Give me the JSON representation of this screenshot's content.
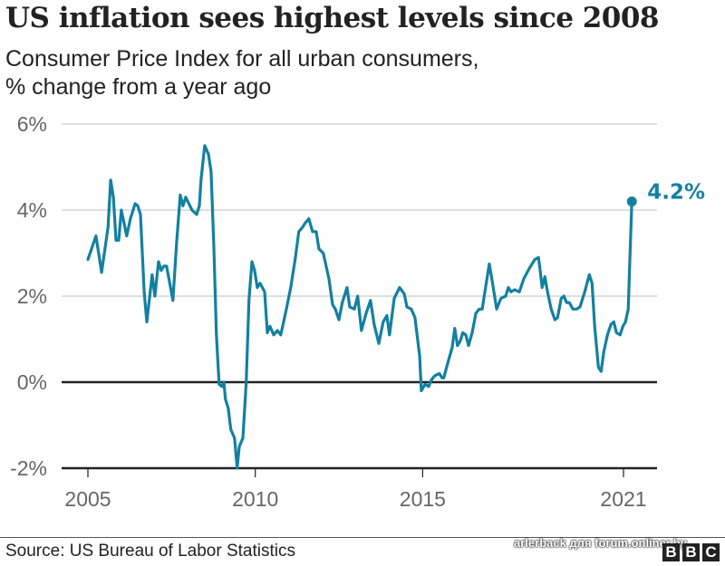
{
  "header": {
    "title": "US inflation sees highest levels since 2008",
    "subtitle_line1": "Consumer Price Index for all urban consumers,",
    "subtitle_line2": "% change from a year ago"
  },
  "footer": {
    "source": "Source: US Bureau of Labor Statistics",
    "watermark": "arlerback для forum.onliner.by",
    "logo_letters": [
      "B",
      "B",
      "C"
    ]
  },
  "colors": {
    "line": "#1380A1",
    "grid": "#cccccc",
    "axis": "#222222",
    "tick_text": "#666666"
  },
  "chart_data": {
    "type": "line",
    "title": "US inflation sees highest levels since 2008",
    "subtitle": "Consumer Price Index for all urban consumers, % change from a year ago",
    "xlabel": "",
    "ylabel": "",
    "xlim": [
      2004.2,
      2021.98
    ],
    "ylim": [
      -2,
      6
    ],
    "y_ticks": [
      {
        "value": 6,
        "label": "6%"
      },
      {
        "value": 4,
        "label": "4%"
      },
      {
        "value": 2,
        "label": "2%"
      },
      {
        "value": 0,
        "label": "0%"
      },
      {
        "value": -2,
        "label": "-2%"
      }
    ],
    "x_ticks": [
      {
        "value": 2005,
        "label": "2005"
      },
      {
        "value": 2010,
        "label": "2010"
      },
      {
        "value": 2015,
        "label": "2015"
      },
      {
        "value": 2021,
        "label": "2021"
      }
    ],
    "grid": true,
    "legend": "none",
    "annotation": {
      "label": "4.2%",
      "x": 2021.25,
      "y": 4.2
    },
    "series": [
      {
        "name": "CPI % change from a year ago",
        "points": [
          [
            2005.0,
            2.85
          ],
          [
            2005.24,
            3.4
          ],
          [
            2005.41,
            2.55
          ],
          [
            2005.6,
            3.6
          ],
          [
            2005.68,
            4.7
          ],
          [
            2005.76,
            4.3
          ],
          [
            2005.84,
            3.3
          ],
          [
            2005.92,
            3.3
          ],
          [
            2006.0,
            4.0
          ],
          [
            2006.16,
            3.4
          ],
          [
            2006.27,
            3.8
          ],
          [
            2006.41,
            4.15
          ],
          [
            2006.49,
            4.1
          ],
          [
            2006.57,
            3.9
          ],
          [
            2006.68,
            2.1
          ],
          [
            2006.76,
            1.4
          ],
          [
            2006.92,
            2.5
          ],
          [
            2007.0,
            2.0
          ],
          [
            2007.11,
            2.8
          ],
          [
            2007.19,
            2.6
          ],
          [
            2007.27,
            2.7
          ],
          [
            2007.35,
            2.7
          ],
          [
            2007.54,
            1.9
          ],
          [
            2007.65,
            3.25
          ],
          [
            2007.76,
            4.35
          ],
          [
            2007.84,
            4.1
          ],
          [
            2007.92,
            4.3
          ],
          [
            2008.11,
            4.0
          ],
          [
            2008.25,
            3.9
          ],
          [
            2008.33,
            4.1
          ],
          [
            2008.38,
            4.7
          ],
          [
            2008.49,
            5.5
          ],
          [
            2008.6,
            5.3
          ],
          [
            2008.68,
            4.9
          ],
          [
            2008.76,
            3.2
          ],
          [
            2008.84,
            1.1
          ],
          [
            2008.92,
            -0.05
          ],
          [
            2009.0,
            -0.1
          ],
          [
            2009.06,
            0.0
          ],
          [
            2009.11,
            -0.4
          ],
          [
            2009.19,
            -0.6
          ],
          [
            2009.27,
            -1.1
          ],
          [
            2009.38,
            -1.3
          ],
          [
            2009.46,
            -2.0
          ],
          [
            2009.52,
            -1.5
          ],
          [
            2009.63,
            -1.3
          ],
          [
            2009.73,
            0.0
          ],
          [
            2009.81,
            1.9
          ],
          [
            2009.9,
            2.8
          ],
          [
            2009.98,
            2.6
          ],
          [
            2010.06,
            2.2
          ],
          [
            2010.14,
            2.3
          ],
          [
            2010.28,
            2.1
          ],
          [
            2010.36,
            1.15
          ],
          [
            2010.44,
            1.3
          ],
          [
            2010.55,
            1.1
          ],
          [
            2010.66,
            1.2
          ],
          [
            2010.76,
            1.1
          ],
          [
            2010.93,
            1.7
          ],
          [
            2011.06,
            2.2
          ],
          [
            2011.2,
            2.9
          ],
          [
            2011.3,
            3.5
          ],
          [
            2011.41,
            3.6
          ],
          [
            2011.49,
            3.7
          ],
          [
            2011.6,
            3.8
          ],
          [
            2011.71,
            3.5
          ],
          [
            2011.82,
            3.5
          ],
          [
            2011.9,
            3.1
          ],
          [
            2012.03,
            3.0
          ],
          [
            2012.2,
            2.4
          ],
          [
            2012.31,
            1.8
          ],
          [
            2012.39,
            1.7
          ],
          [
            2012.5,
            1.45
          ],
          [
            2012.6,
            1.85
          ],
          [
            2012.74,
            2.2
          ],
          [
            2012.82,
            1.75
          ],
          [
            2012.96,
            1.7
          ],
          [
            2013.06,
            2.0
          ],
          [
            2013.17,
            1.2
          ],
          [
            2013.31,
            1.6
          ],
          [
            2013.44,
            1.9
          ],
          [
            2013.55,
            1.35
          ],
          [
            2013.69,
            0.9
          ],
          [
            2013.82,
            1.4
          ],
          [
            2013.93,
            1.55
          ],
          [
            2014.01,
            1.1
          ],
          [
            2014.15,
            1.95
          ],
          [
            2014.31,
            2.2
          ],
          [
            2014.45,
            2.05
          ],
          [
            2014.53,
            1.75
          ],
          [
            2014.66,
            1.7
          ],
          [
            2014.77,
            1.5
          ],
          [
            2014.91,
            0.6
          ],
          [
            2014.96,
            -0.2
          ],
          [
            2015.07,
            -0.05
          ],
          [
            2015.18,
            -0.1
          ],
          [
            2015.26,
            0.05
          ],
          [
            2015.36,
            0.15
          ],
          [
            2015.5,
            0.2
          ],
          [
            2015.58,
            0.1
          ],
          [
            2015.63,
            0.1
          ],
          [
            2015.77,
            0.5
          ],
          [
            2015.88,
            0.8
          ],
          [
            2015.96,
            1.25
          ],
          [
            2016.04,
            0.85
          ],
          [
            2016.12,
            0.95
          ],
          [
            2016.2,
            1.15
          ],
          [
            2016.29,
            1.1
          ],
          [
            2016.37,
            0.85
          ],
          [
            2016.48,
            1.15
          ],
          [
            2016.59,
            1.6
          ],
          [
            2016.69,
            1.7
          ],
          [
            2016.78,
            1.7
          ],
          [
            2016.88,
            2.2
          ],
          [
            2016.99,
            2.75
          ],
          [
            2017.1,
            2.25
          ],
          [
            2017.21,
            1.7
          ],
          [
            2017.34,
            1.95
          ],
          [
            2017.48,
            2.0
          ],
          [
            2017.56,
            2.2
          ],
          [
            2017.64,
            2.1
          ],
          [
            2017.75,
            2.15
          ],
          [
            2017.89,
            2.1
          ],
          [
            2018.02,
            2.4
          ],
          [
            2018.19,
            2.65
          ],
          [
            2018.35,
            2.85
          ],
          [
            2018.46,
            2.9
          ],
          [
            2018.51,
            2.6
          ],
          [
            2018.57,
            2.2
          ],
          [
            2018.65,
            2.45
          ],
          [
            2018.73,
            2.1
          ],
          [
            2018.84,
            1.7
          ],
          [
            2018.95,
            1.45
          ],
          [
            2019.03,
            1.5
          ],
          [
            2019.14,
            1.95
          ],
          [
            2019.22,
            2.0
          ],
          [
            2019.3,
            1.85
          ],
          [
            2019.38,
            1.85
          ],
          [
            2019.49,
            1.7
          ],
          [
            2019.6,
            1.7
          ],
          [
            2019.7,
            1.75
          ],
          [
            2019.84,
            2.1
          ],
          [
            2019.98,
            2.5
          ],
          [
            2020.06,
            2.3
          ],
          [
            2020.14,
            1.3
          ],
          [
            2020.25,
            0.35
          ],
          [
            2020.33,
            0.25
          ],
          [
            2020.41,
            0.7
          ],
          [
            2020.52,
            1.1
          ],
          [
            2020.63,
            1.35
          ],
          [
            2020.71,
            1.4
          ],
          [
            2020.79,
            1.15
          ],
          [
            2020.9,
            1.1
          ],
          [
            2020.98,
            1.3
          ],
          [
            2021.06,
            1.4
          ],
          [
            2021.14,
            1.7
          ],
          [
            2021.25,
            4.2
          ]
        ]
      }
    ]
  }
}
